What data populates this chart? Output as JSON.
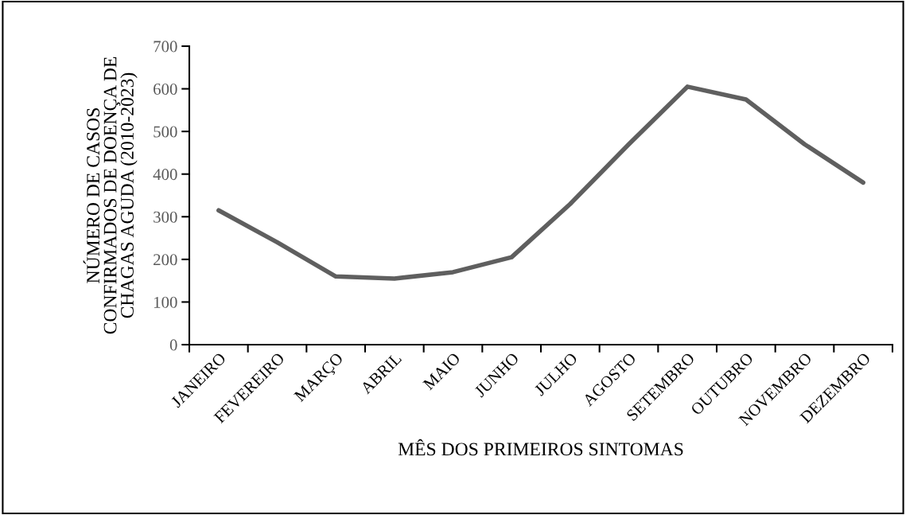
{
  "chart_data": {
    "type": "line",
    "categories": [
      "JANEIRO",
      "FEVEREIRO",
      "MARÇO",
      "ABRIL",
      "MAIO",
      "JUNHO",
      "JULHO",
      "AGOSTO",
      "SETEMBRO",
      "OUTUBRO",
      "NOVEMBRO",
      "DEZEMBRO"
    ],
    "series": [
      {
        "color": "#5f5f5f",
        "values": [
          315,
          240,
          160,
          155,
          170,
          205,
          330,
          470,
          605,
          575,
          470,
          380
        ]
      }
    ],
    "xlabel": "MÊS DOS PRIMEIROS SINTOMAS",
    "ylabel": "NÚMERO DE CASOS\nCONFIRMADOS DE DOENÇA DE\nCHAGAS AGUDA (2010-2023)",
    "ylim": [
      0,
      700
    ],
    "yticks": [
      0,
      100,
      200,
      300,
      400,
      500,
      600,
      700
    ],
    "grid": false,
    "legend": false,
    "marker": "none",
    "line_style": "solid"
  }
}
